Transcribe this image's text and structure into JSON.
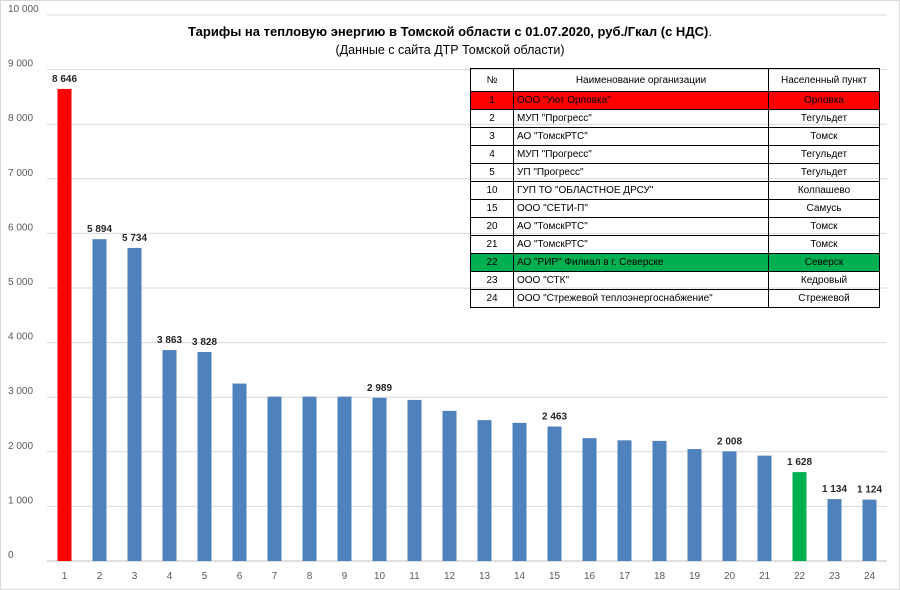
{
  "chart_data": {
    "type": "bar",
    "title": "Тарифы на тепловую энергию в Томской области с 01.07.2020, руб./Гкал (с НДС)",
    "title_suffix": ".",
    "subtitle": "(Данные с сайта ДТР Томской области)",
    "categories": [
      "1",
      "2",
      "3",
      "4",
      "5",
      "6",
      "7",
      "8",
      "9",
      "10",
      "11",
      "12",
      "13",
      "14",
      "15",
      "16",
      "17",
      "18",
      "19",
      "20",
      "21",
      "22",
      "23",
      "24"
    ],
    "values": [
      8646,
      5894,
      5734,
      3863,
      3828,
      3250,
      3010,
      3010,
      3010,
      2989,
      2950,
      2750,
      2580,
      2530,
      2463,
      2250,
      2210,
      2200,
      2050,
      2008,
      1930,
      1628,
      1134,
      1124
    ],
    "labeled_values": [
      {
        "index": 0,
        "text": "8 646"
      },
      {
        "index": 1,
        "text": "5 894"
      },
      {
        "index": 2,
        "text": "5 734"
      },
      {
        "index": 3,
        "text": "3 863"
      },
      {
        "index": 4,
        "text": "3 828"
      },
      {
        "index": 9,
        "text": "2 989"
      },
      {
        "index": 14,
        "text": "2 463"
      },
      {
        "index": 19,
        "text": "2 008"
      },
      {
        "index": 21,
        "text": "1 628"
      },
      {
        "index": 22,
        "text": "1 134"
      },
      {
        "index": 23,
        "text": "1 124"
      }
    ],
    "y_ticks": [
      0,
      1000,
      2000,
      3000,
      4000,
      5000,
      6000,
      7000,
      8000,
      9000,
      10000
    ],
    "y_tick_labels": [
      "0",
      "1 000",
      "2 000",
      "3 000",
      "4 000",
      "5 000",
      "6 000",
      "7 000",
      "8 000",
      "9 000",
      "10 000"
    ],
    "ylim": [
      0,
      10000
    ],
    "grid": true,
    "xlabel": "",
    "ylabel": "",
    "colors": {
      "default": "#4f81bd",
      "highlight_red": "#ff0000",
      "highlight_green": "#00b050",
      "grid": "#d9d9d9",
      "axis": "#bfbfbf"
    },
    "bar_colors": [
      "#ff0000",
      "#4f81bd",
      "#4f81bd",
      "#4f81bd",
      "#4f81bd",
      "#4f81bd",
      "#4f81bd",
      "#4f81bd",
      "#4f81bd",
      "#4f81bd",
      "#4f81bd",
      "#4f81bd",
      "#4f81bd",
      "#4f81bd",
      "#4f81bd",
      "#4f81bd",
      "#4f81bd",
      "#4f81bd",
      "#4f81bd",
      "#4f81bd",
      "#4f81bd",
      "#00b050",
      "#4f81bd",
      "#4f81bd"
    ]
  },
  "legend_table": {
    "headers": [
      "№",
      "Наименование организации",
      "Населенный пункт"
    ],
    "rows": [
      {
        "num": "1",
        "name": "ООО \"Уют Орловка\"",
        "place": "Орловка",
        "highlight": "red"
      },
      {
        "num": "2",
        "name": "МУП \"Прогресс\"",
        "place": "Тегульдет",
        "highlight": ""
      },
      {
        "num": "3",
        "name": "АО \"ТомскРТС\"",
        "place": "Томск",
        "highlight": ""
      },
      {
        "num": "4",
        "name": "МУП \"Прогресс\"",
        "place": "Тегульдет",
        "highlight": ""
      },
      {
        "num": "5",
        "name": "УП \"Прогресс\"",
        "place": "Тегульдет",
        "highlight": ""
      },
      {
        "num": "10",
        "name": "ГУП ТО \"ОБЛАСТНОЕ ДРСУ\"",
        "place": "Колпашево",
        "highlight": ""
      },
      {
        "num": "15",
        "name": "ООО \"СЕТИ-П\"",
        "place": "Самусь",
        "highlight": ""
      },
      {
        "num": "20",
        "name": "АО \"ТомскРТС\"",
        "place": "Томск",
        "highlight": ""
      },
      {
        "num": "21",
        "name": "АО \"ТомскРТС\"",
        "place": "Томск",
        "highlight": ""
      },
      {
        "num": "22",
        "name": "АО \"РИР\" Филиал в г. Северске",
        "place": "Северск",
        "highlight": "green"
      },
      {
        "num": "23",
        "name": "ООО \"СТК\"",
        "place": "Кедровый",
        "highlight": ""
      },
      {
        "num": "24",
        "name": "ООО \"Стрежевой теплоэнергоснабжение\"",
        "place": "Стрежевой",
        "highlight": ""
      }
    ]
  }
}
